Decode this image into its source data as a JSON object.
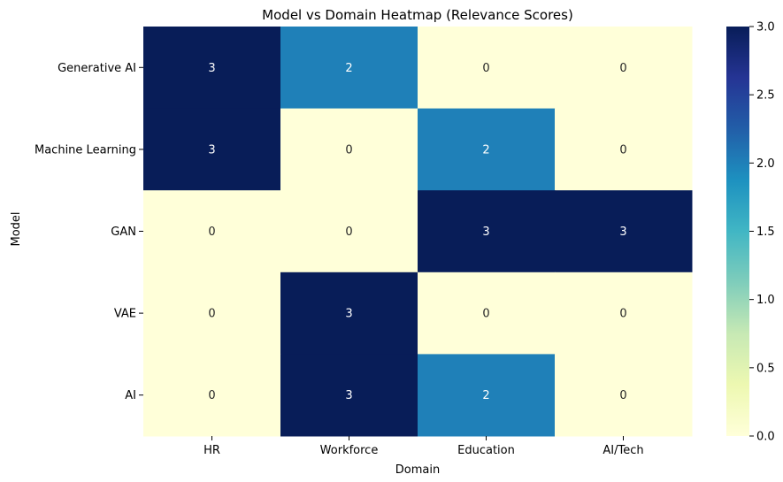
{
  "chart_data": {
    "type": "heatmap",
    "title": "Model vs Domain Heatmap (Relevance Scores)",
    "xlabel": "Domain",
    "ylabel": "Model",
    "x_categories": [
      "HR",
      "Workforce",
      "Education",
      "AI/Tech"
    ],
    "y_categories": [
      "Generative AI",
      "Machine Learning",
      "GAN",
      "VAE",
      "AI"
    ],
    "values": [
      [
        3,
        2,
        0,
        0
      ],
      [
        3,
        0,
        2,
        0
      ],
      [
        0,
        0,
        3,
        3
      ],
      [
        0,
        3,
        0,
        0
      ],
      [
        0,
        3,
        2,
        0
      ]
    ],
    "colormap": "YlGnBu",
    "vmin": 0,
    "vmax": 3,
    "annotate": true,
    "colorbar": {
      "ticks": [
        "0.0",
        "0.5",
        "1.0",
        "1.5",
        "2.0",
        "2.5",
        "3.0"
      ]
    },
    "colors": {
      "value_0": "#ffffd9",
      "value_2": "#1f80b8",
      "value_3": "#081d58"
    }
  }
}
